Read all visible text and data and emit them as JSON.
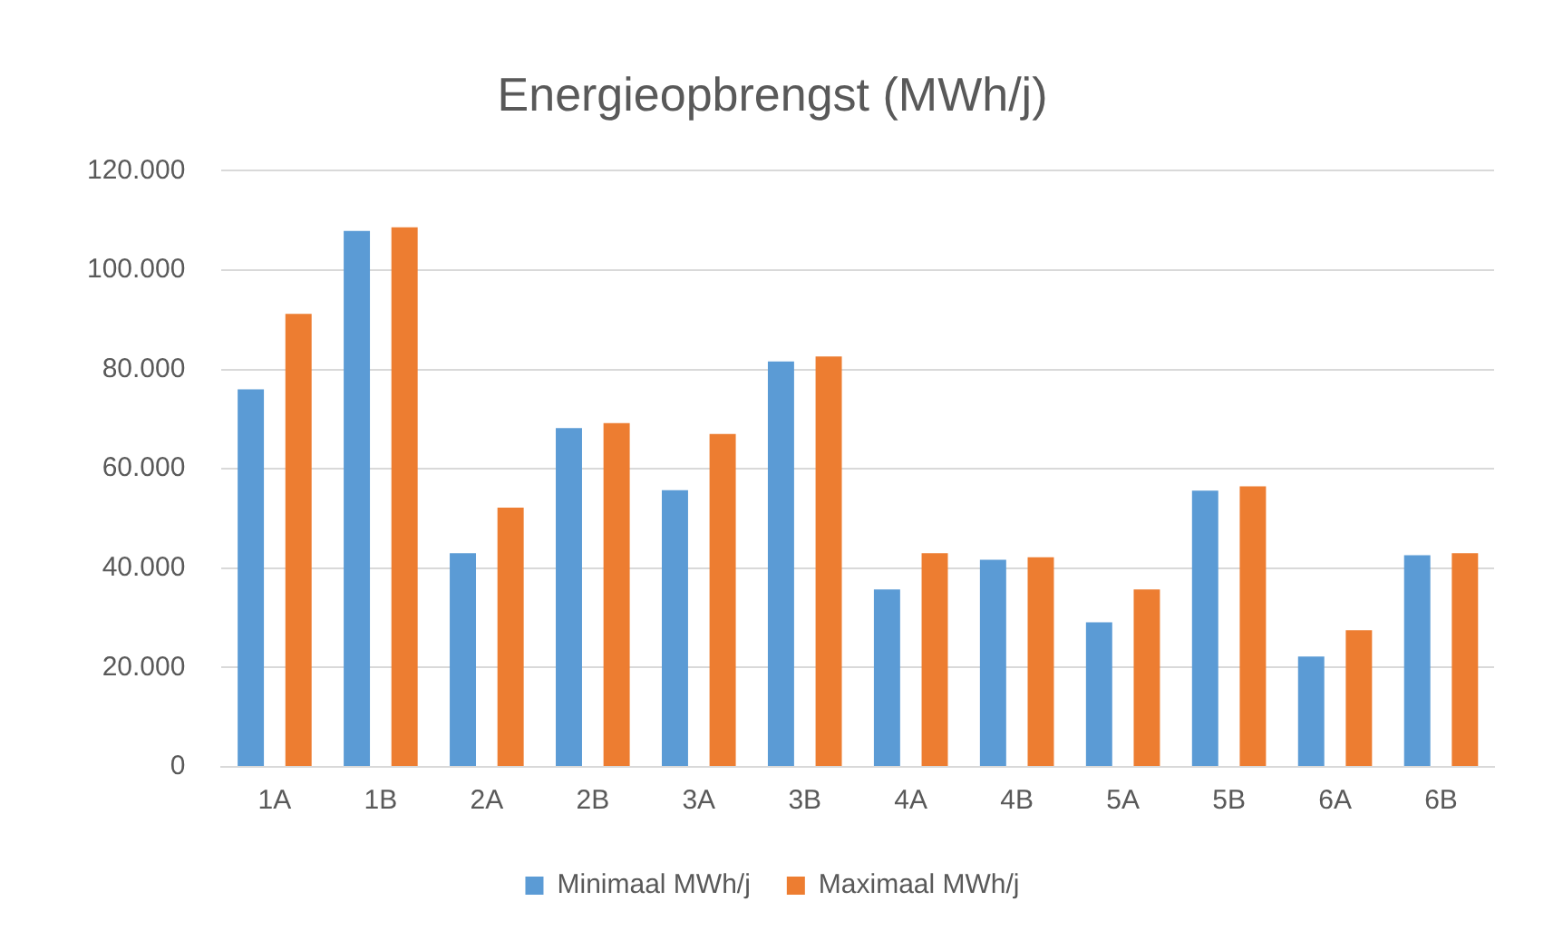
{
  "chart_data": {
    "type": "bar",
    "title": "Energieopbrengst (MWh/j)",
    "categories": [
      "1A",
      "1B",
      "2A",
      "2B",
      "3A",
      "3B",
      "4A",
      "4B",
      "5A",
      "5B",
      "6A",
      "6B"
    ],
    "series": [
      {
        "name": "Minimaal MWh/j",
        "color": "#5b9bd5",
        "values": [
          76000,
          107900,
          43000,
          68200,
          55700,
          81600,
          35700,
          41700,
          29100,
          55600,
          22200,
          42600
        ]
      },
      {
        "name": "Maximaal MWh/j",
        "color": "#ed7d31",
        "values": [
          91200,
          108600,
          52200,
          69200,
          67000,
          82600,
          43000,
          42200,
          35700,
          56500,
          27500,
          43000
        ]
      }
    ],
    "ylim": [
      0,
      120000
    ],
    "yticks": [
      {
        "value": 0,
        "label": "0"
      },
      {
        "value": 20000,
        "label": "20.000"
      },
      {
        "value": 40000,
        "label": "40.000"
      },
      {
        "value": 60000,
        "label": "60.000"
      },
      {
        "value": 80000,
        "label": "80.000"
      },
      {
        "value": 100000,
        "label": "100.000"
      },
      {
        "value": 120000,
        "label": "120.000"
      }
    ],
    "grid": "y",
    "legend": "bottom"
  }
}
